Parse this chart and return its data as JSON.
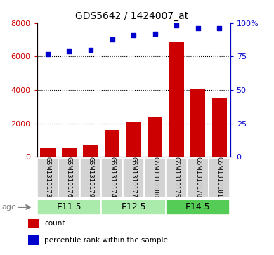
{
  "title": "GDS5642 / 1424007_at",
  "samples": [
    "GSM1310173",
    "GSM1310176",
    "GSM1310179",
    "GSM1310174",
    "GSM1310177",
    "GSM1310180",
    "GSM1310175",
    "GSM1310178",
    "GSM1310181"
  ],
  "counts": [
    500,
    550,
    680,
    1600,
    2050,
    2350,
    6850,
    4050,
    3500
  ],
  "percentiles": [
    77,
    79,
    80,
    88,
    91,
    92,
    98,
    96,
    96
  ],
  "groups": [
    {
      "label": "E11.5",
      "start": 0,
      "end": 3,
      "color": "#AAEAAA"
    },
    {
      "label": "E12.5",
      "start": 3,
      "end": 6,
      "color": "#AAEAAA"
    },
    {
      "label": "E14.5",
      "start": 6,
      "end": 9,
      "color": "#55CC55"
    }
  ],
  "bar_color": "#CC0000",
  "dot_color": "#0000CC",
  "left_axis_color": "#CC0000",
  "right_axis_color": "#0000CC",
  "ylim_left": [
    0,
    8000
  ],
  "ylim_right": [
    0,
    100
  ],
  "left_ticks": [
    0,
    2000,
    4000,
    6000,
    8000
  ],
  "right_ticks": [
    0,
    25,
    50,
    75,
    100
  ],
  "grid_values": [
    2000,
    4000,
    6000
  ],
  "bg_color": "#FFFFFF",
  "sample_box_color": "#D3D3D3",
  "legend": [
    {
      "color": "#CC0000",
      "label": "count"
    },
    {
      "color": "#0000CC",
      "label": "percentile rank within the sample"
    }
  ]
}
